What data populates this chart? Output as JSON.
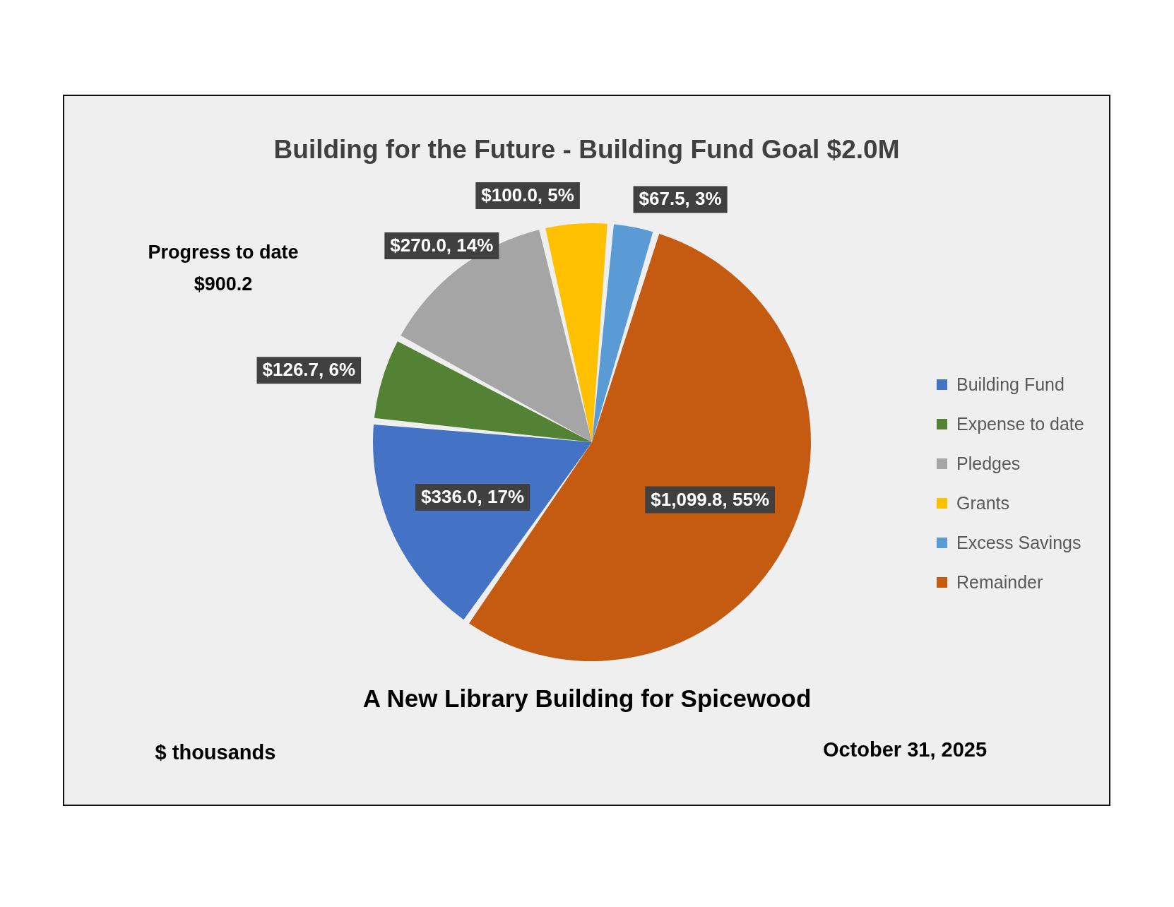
{
  "chart_data": {
    "type": "pie",
    "title": "Building for the Future - Building Fund Goal $2.0M",
    "categories": [
      "Building Fund",
      "Expense to date",
      "Pledges",
      "Grants",
      "Excess Savings",
      "Remainder"
    ],
    "values": [
      336.0,
      126.7,
      270.0,
      100.0,
      67.5,
      1099.8
    ],
    "colors": [
      "#4472c4",
      "#548235",
      "#a5a5a5",
      "#ffc000",
      "#5b9bd5",
      "#c55a11"
    ],
    "value_labels": [
      "$336.0, 17%",
      "$126.7, 6%",
      "$270.0, 14%",
      "$100.0, 5%",
      "$67.5, 3%",
      "$1,099.8, 55%"
    ],
    "legend": "right",
    "annotations": [
      "Progress to date\n$900.2",
      "A New Library Building for Spicewood",
      "$ thousands",
      "October 31, 2025"
    ]
  }
}
